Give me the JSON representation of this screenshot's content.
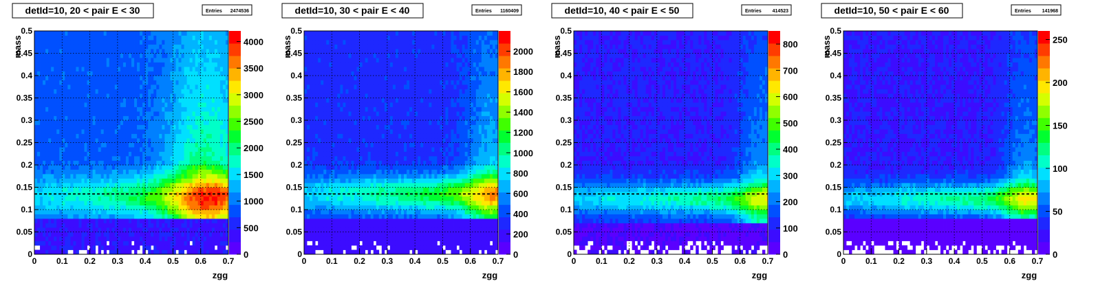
{
  "chart_data": [
    {
      "type": "heatmap",
      "title": "detId=10, 20 < pair E < 30",
      "stats_label": "Entries",
      "entries": "2474536",
      "xlabel": "zgg",
      "ylabel": "mass",
      "xlim": [
        0,
        0.7
      ],
      "ylim": [
        0,
        0.5
      ],
      "x_ticks": [
        "0",
        "0.1",
        "0.2",
        "0.3",
        "0.4",
        "0.5",
        "0.6",
        "0.7"
      ],
      "y_ticks": [
        "0",
        "0.05",
        "0.1",
        "0.15",
        "0.2",
        "0.25",
        "0.3",
        "0.35",
        "0.4",
        "0.45",
        "0.5"
      ],
      "z_max": 4200,
      "z_ticks": [
        "0",
        "500",
        "1000",
        "1500",
        "2000",
        "2500",
        "3000",
        "3500",
        "4000"
      ],
      "z_tick_values": [
        0,
        500,
        1000,
        1500,
        2000,
        2500,
        3000,
        3500,
        4000
      ],
      "reference_line_mass": 0.135,
      "model": {
        "peak_mass": 0.13,
        "peak_width": 0.03,
        "peak_amp": 0.3,
        "vband_z0": 0.62,
        "vband_width": 0.1,
        "vband_amp": 0.55,
        "z_growth": 1.2,
        "background": 0.22,
        "low_mass_cut": 0.085,
        "low_mass_level": 0.1,
        "empty_fraction": 0.15,
        "seed": 11
      }
    },
    {
      "type": "heatmap",
      "title": "detId=10, 30 < pair E < 40",
      "stats_label": "Entries",
      "entries": "1160409",
      "xlabel": "zgg",
      "ylabel": "mass",
      "xlim": [
        0,
        0.7
      ],
      "ylim": [
        0,
        0.5
      ],
      "x_ticks": [
        "0",
        "0.1",
        "0.2",
        "0.3",
        "0.4",
        "0.5",
        "0.6",
        "0.7"
      ],
      "y_ticks": [
        "0",
        "0.05",
        "0.1",
        "0.15",
        "0.2",
        "0.25",
        "0.3",
        "0.35",
        "0.4",
        "0.45",
        "0.5"
      ],
      "z_max": 2200,
      "z_ticks": [
        "0",
        "200",
        "400",
        "600",
        "800",
        "1000",
        "1200",
        "1400",
        "1600",
        "1800",
        "2000"
      ],
      "z_tick_values": [
        0,
        200,
        400,
        600,
        800,
        1000,
        1200,
        1400,
        1600,
        1800,
        2000
      ],
      "reference_line_mass": 0.135,
      "model": {
        "peak_mass": 0.135,
        "peak_width": 0.028,
        "peak_amp": 0.4,
        "vband_z0": 0.68,
        "vband_width": 0.07,
        "vband_amp": 0.35,
        "z_growth": 1.0,
        "background": 0.16,
        "low_mass_cut": 0.08,
        "low_mass_level": 0.08,
        "empty_fraction": 0.3,
        "seed": 23
      }
    },
    {
      "type": "heatmap",
      "title": "detId=10, 40 < pair E < 50",
      "stats_label": "Entries",
      "entries": "414523",
      "xlabel": "zgg",
      "ylabel": "mass",
      "xlim": [
        0,
        0.7
      ],
      "ylim": [
        0,
        0.5
      ],
      "x_ticks": [
        "0",
        "0.1",
        "0.2",
        "0.3",
        "0.4",
        "0.5",
        "0.6",
        "0.7"
      ],
      "y_ticks": [
        "0",
        "0.05",
        "0.1",
        "0.15",
        "0.2",
        "0.25",
        "0.3",
        "0.35",
        "0.4",
        "0.45",
        "0.5"
      ],
      "z_max": 850,
      "z_ticks": [
        "0",
        "100",
        "200",
        "300",
        "400",
        "500",
        "600",
        "700",
        "800"
      ],
      "z_tick_values": [
        0,
        100,
        200,
        300,
        400,
        500,
        600,
        700,
        800
      ],
      "reference_line_mass": 0.135,
      "model": {
        "peak_mass": 0.125,
        "peak_width": 0.025,
        "peak_amp": 0.45,
        "vband_z0": 0.68,
        "vband_width": 0.06,
        "vband_amp": 0.3,
        "z_growth": 0.6,
        "background": 0.13,
        "low_mass_cut": 0.075,
        "low_mass_level": 0.05,
        "empty_fraction": 0.55,
        "seed": 37
      }
    },
    {
      "type": "heatmap",
      "title": "detId=10, 50 < pair E < 60",
      "stats_label": "Entries",
      "entries": "141968",
      "xlabel": "zgg",
      "ylabel": "mass",
      "xlim": [
        0,
        0.7
      ],
      "ylim": [
        0,
        0.5
      ],
      "x_ticks": [
        "0",
        "0.1",
        "0.2",
        "0.3",
        "0.4",
        "0.5",
        "0.6",
        "0.7"
      ],
      "y_ticks": [
        "0",
        "0.05",
        "0.1",
        "0.15",
        "0.2",
        "0.25",
        "0.3",
        "0.35",
        "0.4",
        "0.45",
        "0.5"
      ],
      "z_max": 260,
      "z_ticks": [
        "0",
        "50",
        "100",
        "150",
        "200",
        "250"
      ],
      "z_tick_values": [
        0,
        50,
        100,
        150,
        200,
        250
      ],
      "reference_line_mass": 0.135,
      "model": {
        "peak_mass": 0.125,
        "peak_width": 0.025,
        "peak_amp": 0.45,
        "vband_z0": 0.66,
        "vband_width": 0.06,
        "vband_amp": 0.3,
        "z_growth": 0.7,
        "background": 0.12,
        "low_mass_cut": 0.08,
        "low_mass_level": 0.04,
        "empty_fraction": 0.65,
        "seed": 53
      }
    }
  ],
  "palette": [
    "#5a00ff",
    "#3c0cff",
    "#1e28ff",
    "#0050ff",
    "#0080ff",
    "#00b4ff",
    "#00e0ff",
    "#00ffc8",
    "#00ff80",
    "#00ff30",
    "#40ff00",
    "#90ff00",
    "#d4ff00",
    "#ffe800",
    "#ffb400",
    "#ff7800",
    "#ff3c00",
    "#ff0000"
  ]
}
